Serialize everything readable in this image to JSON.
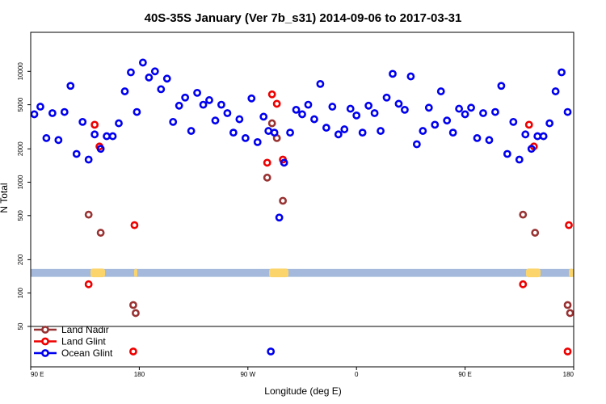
{
  "chart_data": {
    "type": "scatter",
    "title": "40S-35S January (Ver 7b_s31)   2014-09-06 to 2017-03-31",
    "xlabel": "Longitude (deg E)",
    "ylabel": "N Total",
    "x_axis": {
      "range": [
        90,
        540
      ],
      "ticks": [
        {
          "value": 90,
          "label": "90 E"
        },
        {
          "value": 180,
          "label": "180"
        },
        {
          "value": 270,
          "label": "90 W"
        },
        {
          "value": 360,
          "label": "0"
        },
        {
          "value": 450,
          "label": "90 E"
        },
        {
          "value": 540,
          "label": "180"
        }
      ]
    },
    "y_axis": {
      "scale": "log",
      "range": [
        50,
        20000
      ],
      "ticks": [
        {
          "value": 50,
          "label": "50"
        },
        {
          "value": 100,
          "label": "100"
        },
        {
          "value": 200,
          "label": "200"
        },
        {
          "value": 500,
          "label": "500"
        },
        {
          "value": 1000,
          "label": "1000"
        },
        {
          "value": 2000,
          "label": "2000"
        },
        {
          "value": 5000,
          "label": "5000"
        },
        {
          "value": 10000,
          "label": "10000"
        }
      ]
    },
    "legend_position": "bottom-left",
    "land_band": {
      "y_low": 140,
      "y_high": 165
    },
    "series": [
      {
        "name": "Land Nadir",
        "color": "#993333",
        "points": [
          [
            138,
            510
          ],
          [
            148,
            350
          ],
          [
            175,
            78
          ],
          [
            177,
            66
          ],
          [
            286,
            1100
          ],
          [
            290,
            3400
          ],
          [
            294,
            2500
          ],
          [
            299,
            680
          ],
          [
            498,
            510
          ],
          [
            508,
            350
          ],
          [
            535,
            78
          ],
          [
            537,
            66
          ]
        ],
        "offscale_points": []
      },
      {
        "name": "Land Glint",
        "color": "#ee0000",
        "points": [
          [
            138,
            120
          ],
          [
            143,
            3300
          ],
          [
            147,
            2100
          ],
          [
            176,
            410
          ],
          [
            286,
            1500
          ],
          [
            290,
            6200
          ],
          [
            294,
            5100
          ],
          [
            299,
            1600
          ],
          [
            498,
            120
          ],
          [
            503,
            3300
          ],
          [
            507,
            2100
          ],
          [
            536,
            410
          ]
        ],
        "offscale_points": [
          175,
          535
        ]
      },
      {
        "name": "Ocean Glint",
        "color": "#0000ee",
        "points": [
          [
            93,
            4100
          ],
          [
            98,
            4800
          ],
          [
            103,
            2500
          ],
          [
            108,
            4200
          ],
          [
            113,
            2400
          ],
          [
            118,
            4300
          ],
          [
            123,
            7400
          ],
          [
            128,
            1800
          ],
          [
            133,
            3500
          ],
          [
            138,
            1600
          ],
          [
            143,
            2700
          ],
          [
            148,
            2000
          ],
          [
            153,
            2600
          ],
          [
            158,
            2600
          ],
          [
            163,
            3400
          ],
          [
            168,
            6600
          ],
          [
            173,
            9800
          ],
          [
            178,
            4300
          ],
          [
            183,
            12000
          ],
          [
            188,
            8800
          ],
          [
            193,
            10000
          ],
          [
            198,
            6900
          ],
          [
            203,
            8600
          ],
          [
            208,
            3500
          ],
          [
            213,
            4900
          ],
          [
            218,
            5800
          ],
          [
            223,
            2900
          ],
          [
            228,
            6400
          ],
          [
            233,
            5000
          ],
          [
            238,
            5500
          ],
          [
            243,
            3600
          ],
          [
            248,
            5000
          ],
          [
            253,
            4200
          ],
          [
            258,
            2800
          ],
          [
            263,
            3700
          ],
          [
            268,
            2500
          ],
          [
            273,
            5700
          ],
          [
            278,
            2300
          ],
          [
            283,
            3900
          ],
          [
            287,
            2900
          ],
          [
            292,
            2800
          ],
          [
            296,
            480
          ],
          [
            300,
            1500
          ],
          [
            305,
            2800
          ],
          [
            310,
            4500
          ],
          [
            315,
            4100
          ],
          [
            320,
            5000
          ],
          [
            325,
            3700
          ],
          [
            330,
            7700
          ],
          [
            335,
            3100
          ],
          [
            340,
            4800
          ],
          [
            345,
            2700
          ],
          [
            350,
            3000
          ],
          [
            355,
            4600
          ],
          [
            360,
            4000
          ],
          [
            365,
            2800
          ],
          [
            370,
            4900
          ],
          [
            375,
            4200
          ],
          [
            380,
            2900
          ],
          [
            385,
            5800
          ],
          [
            390,
            9500
          ],
          [
            395,
            5100
          ],
          [
            400,
            4500
          ],
          [
            405,
            9000
          ],
          [
            410,
            2200
          ],
          [
            415,
            2900
          ],
          [
            420,
            4700
          ],
          [
            425,
            3300
          ],
          [
            430,
            6600
          ],
          [
            435,
            3600
          ],
          [
            440,
            2800
          ],
          [
            445,
            4600
          ],
          [
            450,
            4100
          ],
          [
            455,
            4700
          ],
          [
            460,
            2500
          ],
          [
            465,
            4200
          ],
          [
            470,
            2400
          ],
          [
            475,
            4300
          ],
          [
            480,
            7400
          ],
          [
            485,
            1800
          ],
          [
            490,
            3500
          ],
          [
            495,
            1600
          ],
          [
            500,
            2700
          ],
          [
            505,
            2000
          ],
          [
            510,
            2600
          ],
          [
            515,
            2600
          ],
          [
            520,
            3400
          ],
          [
            525,
            6600
          ],
          [
            530,
            9800
          ],
          [
            535,
            4300
          ]
        ],
        "offscale_points": [
          289
        ]
      }
    ]
  }
}
